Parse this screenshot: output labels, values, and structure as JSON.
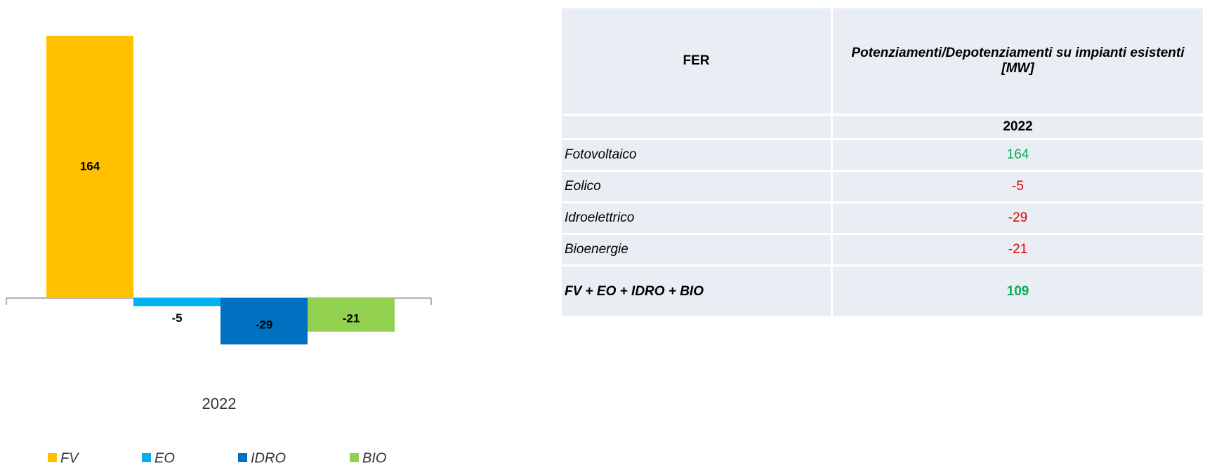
{
  "chart_data": {
    "type": "bar",
    "category": "2022",
    "series": [
      {
        "name": "FV",
        "color": "#ffc000",
        "values": [
          164
        ]
      },
      {
        "name": "EO",
        "color": "#00b0f0",
        "values": [
          -5
        ]
      },
      {
        "name": "IDRO",
        "color": "#0070c0",
        "values": [
          -29
        ]
      },
      {
        "name": "BIO",
        "color": "#92d050",
        "values": [
          -21
        ]
      }
    ]
  },
  "table": {
    "header": [
      "FER",
      "Potenziamenti/Depotenziamenti su impianti esistenti [MW]"
    ],
    "subheader": "2022",
    "rows": [
      [
        "Fotovoltaico",
        164
      ],
      [
        "Eolico",
        -5
      ],
      [
        "Idroelettrico",
        -29
      ],
      [
        "Bioenergie",
        -21
      ],
      [
        "FV + EO + IDRO + BIO",
        109
      ]
    ]
  }
}
